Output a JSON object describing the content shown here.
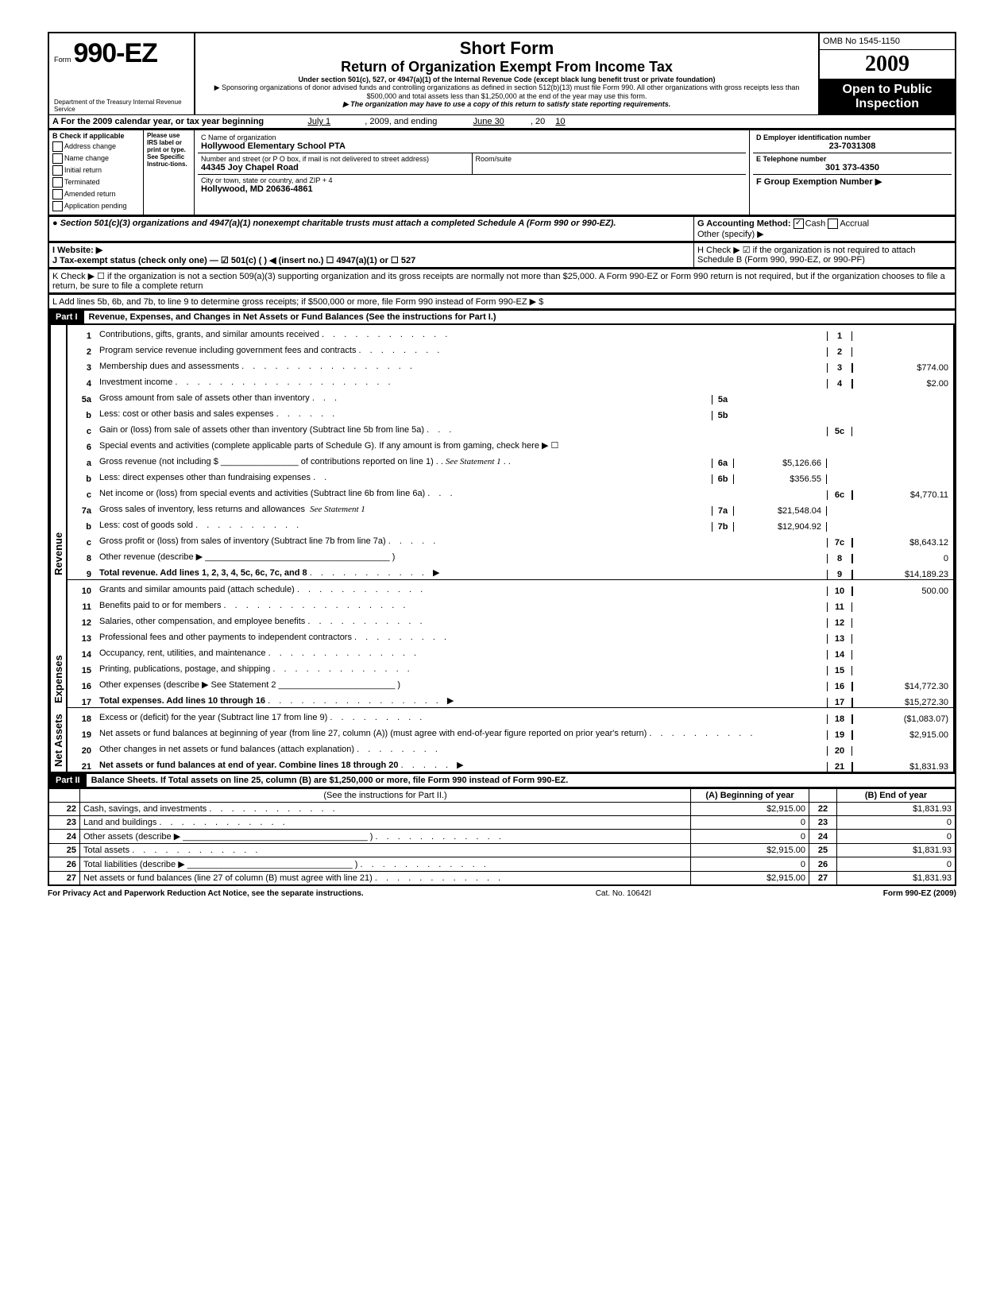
{
  "header": {
    "form_label": "Form",
    "form_number": "990-EZ",
    "dept": "Department of the Treasury\nInternal Revenue Service",
    "title1": "Short Form",
    "title2": "Return of Organization Exempt From Income Tax",
    "subtitle": "Under section 501(c), 527, or 4947(a)(1) of the Internal Revenue Code (except black lung benefit trust or private foundation)",
    "note1": "▶ Sponsoring organizations of donor advised funds and controlling organizations as defined in section 512(b)(13) must file Form 990. All other organizations with gross receipts less than $500,000 and total assets less than $1,250,000 at the end of the year may use this form.",
    "note2": "▶ The organization may have to use a copy of this return to satisfy state reporting requirements.",
    "omb": "OMB No 1545-1150",
    "year": "2009",
    "open": "Open to Public Inspection"
  },
  "lineA": {
    "text": "A For the 2009 calendar year, or tax year beginning",
    "begin": "July 1",
    "mid": ", 2009, and ending",
    "end": "June 30",
    "tail": ", 20",
    "yy": "10"
  },
  "sectionB": {
    "heading": "B Check if applicable",
    "items": [
      "Address change",
      "Name change",
      "Initial return",
      "Terminated",
      "Amended return",
      "Application pending"
    ],
    "please": "Please use IRS label or print or type. See Specific Instruc-tions.",
    "c_label": "C  Name of organization",
    "c_value": "Hollywood Elementary School PTA",
    "street_label": "Number and street (or P O  box, if mail is not delivered to street address)",
    "street_value": "44345 Joy Chapel Road",
    "room_label": "Room/suite",
    "city_label": "City or town, state or country, and ZIP + 4",
    "city_value": "Hollywood, MD 20636-4861",
    "d_label": "D Employer identification number",
    "d_value": "23-7031308",
    "e_label": "E Telephone number",
    "e_value": "301 373-4350",
    "f_label": "F Group Exemption Number ▶"
  },
  "noteBullet": "● Section 501(c)(3) organizations and 4947(a)(1) nonexempt charitable trusts must attach a completed Schedule A (Form 990 or 990-EZ).",
  "g_label": "G Accounting Method:",
  "g_cash": "Cash",
  "g_accrual": "Accrual",
  "g_other": "Other (specify) ▶",
  "h_label": "H Check ▶ ☑ if the organization is not required to attach Schedule B (Form 990, 990-EZ, or 990-PF)",
  "i_label": "I  Website: ▶",
  "j_label": "J Tax-exempt status (check only one) — ☑ 501(c) (        ) ◀ (insert no.)   ☐ 4947(a)(1) or   ☐ 527",
  "k_label": "K Check ▶  ☐   if the organization is not a section 509(a)(3) supporting organization and its gross receipts are normally not more than $25,000.  A Form 990-EZ or Form 990 return is not required, but if the organization chooses to file a return, be sure to file a complete return",
  "l_label": "L  Add lines 5b, 6b, and 7b, to line 9 to determine gross receipts; if $500,000 or more, file Form 990 instead of Form 990-EZ   ▶   $",
  "part1": {
    "label": "Part I",
    "title": "Revenue, Expenses, and Changes in Net Assets or Fund Balances (See the instructions for Part I.)"
  },
  "side_revenue": "Revenue",
  "side_expenses": "Expenses",
  "side_net": "Net Assets",
  "lines": {
    "1": {
      "desc": "Contributions, gifts, grants, and similar amounts received",
      "amt": ""
    },
    "2": {
      "desc": "Program service revenue including government fees and contracts",
      "amt": ""
    },
    "3": {
      "desc": "Membership dues and assessments",
      "amt": "$774.00"
    },
    "4": {
      "desc": "Investment income",
      "amt": "$2.00"
    },
    "5a": {
      "desc": "Gross amount from sale of assets other than inventory",
      "inner": ""
    },
    "5b": {
      "desc": "Less: cost or other basis and sales expenses",
      "inner": ""
    },
    "5c": {
      "desc": "Gain or (loss) from sale of assets other than inventory (Subtract line 5b from line 5a)",
      "amt": ""
    },
    "6": {
      "desc": "Special events and activities (complete applicable parts of Schedule G). If any amount is from gaming, check here ▶ ☐"
    },
    "6a": {
      "desc": "Gross revenue (not including $ ________________ of contributions reported on line 1)",
      "hand": "See Statement 1",
      "inner": "$5,126.66"
    },
    "6b": {
      "desc": "Less: direct expenses other than fundraising expenses",
      "inner": "$356.55"
    },
    "6c": {
      "desc": "Net income or (loss) from special events and activities (Subtract line 6b from line 6a)",
      "amt": "$4,770.11"
    },
    "7a": {
      "desc": "Gross sales of inventory, less returns and allowances",
      "hand": "See Statement 1",
      "inner": "$21,548.04"
    },
    "7b": {
      "desc": "Less: cost of goods sold",
      "inner": "$12,904.92"
    },
    "7c": {
      "desc": "Gross profit or (loss) from sales of inventory (Subtract line 7b from line 7a)",
      "amt": "$8,643.12"
    },
    "8": {
      "desc": "Other revenue (describe ▶",
      "amt": "0"
    },
    "9": {
      "desc": "Total revenue. Add lines 1, 2, 3, 4, 5c, 6c, 7c, and 8",
      "amt": "$14,189.23"
    },
    "10": {
      "desc": "Grants and similar amounts paid (attach schedule)",
      "amt": "500.00"
    },
    "11": {
      "desc": "Benefits paid to or for members",
      "amt": ""
    },
    "12": {
      "desc": "Salaries, other compensation, and employee benefits",
      "amt": ""
    },
    "13": {
      "desc": "Professional fees and other payments to independent contractors",
      "amt": ""
    },
    "14": {
      "desc": "Occupancy, rent, utilities, and maintenance",
      "amt": ""
    },
    "15": {
      "desc": "Printing, publications, postage, and shipping",
      "amt": ""
    },
    "16": {
      "desc": "Other expenses (describe ▶   See Statement 2",
      "amt": "$14,772.30"
    },
    "17": {
      "desc": "Total expenses. Add lines 10 through 16",
      "amt": "$15,272.30"
    },
    "18": {
      "desc": "Excess or (deficit) for the year (Subtract line 17 from line 9)",
      "amt": "($1,083.07)"
    },
    "19": {
      "desc": "Net assets or fund balances at beginning of year (from line 27, column (A)) (must agree with end-of-year figure reported on prior year's return)",
      "amt": "$2,915.00"
    },
    "20": {
      "desc": "Other changes in net assets or fund balances (attach explanation)",
      "amt": ""
    },
    "21": {
      "desc": "Net assets or fund balances at end of year. Combine lines 18 through 20",
      "amt": "$1,831.93"
    }
  },
  "part2": {
    "label": "Part II",
    "title": "Balance Sheets. If Total assets on line 25, column (B) are $1,250,000 or more, file Form 990 instead of Form 990-EZ.",
    "see": "(See the instructions for Part II.)",
    "colA": "(A) Beginning of year",
    "colB": "(B) End of year",
    "rows": [
      {
        "n": "22",
        "d": "Cash, savings, and investments",
        "a": "$2,915.00",
        "b": "$1,831.93"
      },
      {
        "n": "23",
        "d": "Land and buildings",
        "a": "0",
        "b": "0"
      },
      {
        "n": "24",
        "d": "Other assets (describe ▶  ______________________________________ )",
        "a": "0",
        "b": "0"
      },
      {
        "n": "25",
        "d": "Total assets",
        "a": "$2,915.00",
        "b": "$1,831.93"
      },
      {
        "n": "26",
        "d": "Total liabilities (describe ▶  __________________________________ )",
        "a": "0",
        "b": "0"
      },
      {
        "n": "27",
        "d": "Net assets or fund balances (line 27 of column (B) must agree with line 21)",
        "a": "$2,915.00",
        "b": "$1,831.93"
      }
    ]
  },
  "footer": {
    "privacy": "For Privacy Act and Paperwork Reduction Act Notice, see the separate instructions.",
    "cat": "Cat. No. 10642I",
    "form": "Form 990-EZ (2009)"
  }
}
